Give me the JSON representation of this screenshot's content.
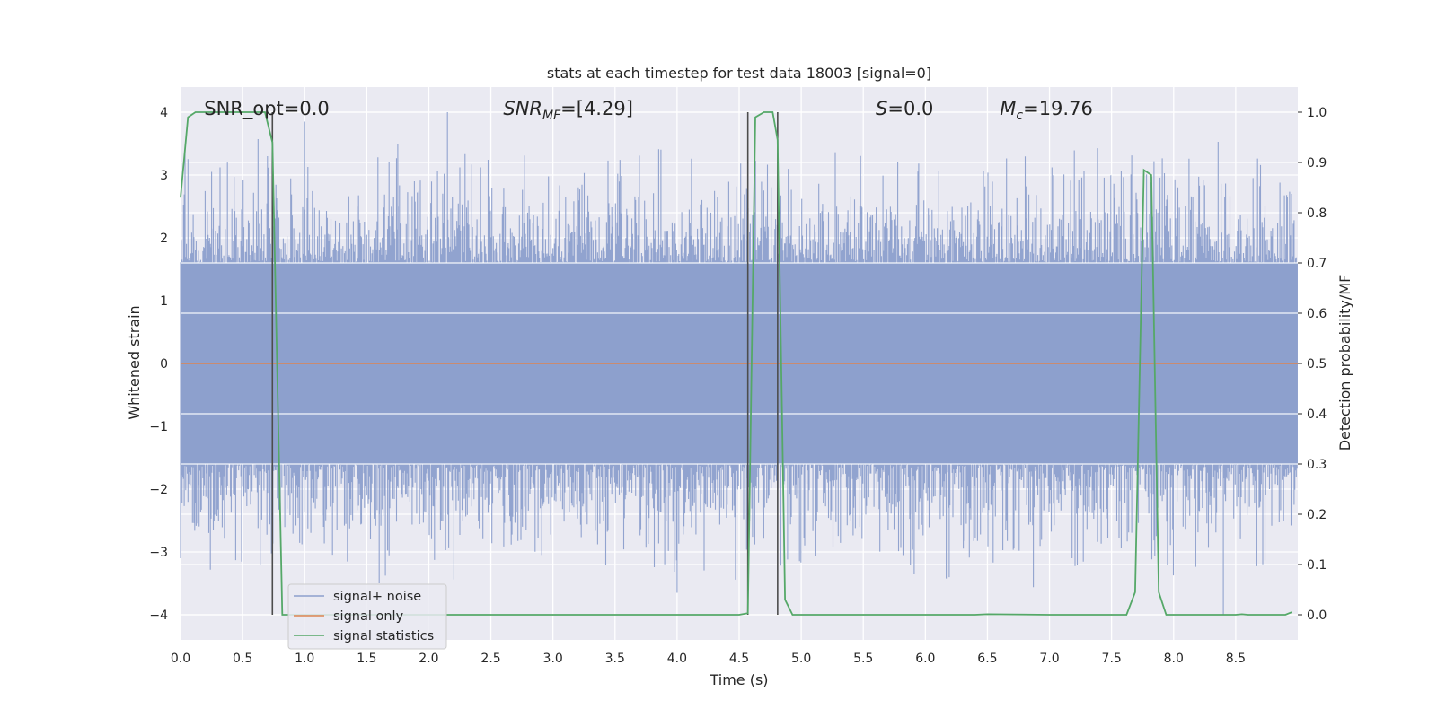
{
  "chart_data": {
    "type": "line",
    "title": "stats at each timestep for test data 18003 [signal=0]",
    "xlabel": "Time (s)",
    "ylabel_left": "Whitened strain",
    "ylabel_right": "Detection probability/MF",
    "xlim": [
      0.0,
      9.0
    ],
    "ylim_left": [
      -4.4,
      4.4
    ],
    "ylim_right": [
      -0.05,
      1.05
    ],
    "x_ticks": [
      0.0,
      0.5,
      1.0,
      1.5,
      2.0,
      2.5,
      3.0,
      3.5,
      4.0,
      4.5,
      5.0,
      5.5,
      6.0,
      6.5,
      7.0,
      7.5,
      8.0,
      8.5
    ],
    "x_tick_labels": [
      "0.0",
      "0.5",
      "1.0",
      "1.5",
      "2.0",
      "2.5",
      "3.0",
      "3.5",
      "4.0",
      "4.5",
      "5.0",
      "5.5",
      "6.0",
      "6.5",
      "7.0",
      "7.5",
      "8.0",
      "8.5"
    ],
    "y_left_ticks": [
      -4,
      -3,
      -2,
      -1,
      0,
      1,
      2,
      3,
      4
    ],
    "y_left_tick_labels": [
      "−4",
      "−3",
      "−2",
      "−1",
      "0",
      "1",
      "2",
      "3",
      "4"
    ],
    "y_right_ticks": [
      0.0,
      0.1,
      0.2,
      0.3,
      0.4,
      0.5,
      0.6,
      0.7,
      0.8,
      0.9,
      1.0
    ],
    "y_right_tick_labels": [
      "0.0",
      "0.1",
      "0.2",
      "0.3",
      "0.4",
      "0.5",
      "0.6",
      "0.7",
      "0.8",
      "0.9",
      "1.0"
    ],
    "grid": true,
    "legend_position": "lower-left",
    "annotations": [
      {
        "text": "SNR_opt=0.0",
        "x": 0.19,
        "y": 4.0
      },
      {
        "text": "SNR_MF=[4.29]",
        "x": 2.6,
        "y": 4.0
      },
      {
        "text": "S=0.0",
        "x": 5.6,
        "y": 4.0
      },
      {
        "text": "M_c=19.76",
        "x": 6.6,
        "y": 4.0
      }
    ],
    "vlines": [
      {
        "x": 0.74,
        "ymin": -4,
        "ymax": 4
      },
      {
        "x": 4.57,
        "ymin": -4,
        "ymax": 4
      },
      {
        "x": 4.81,
        "ymin": -4,
        "ymax": 4
      }
    ],
    "series": [
      {
        "name": "signal+ noise",
        "color": "#8c9fcc",
        "kind": "noise",
        "envelope": 1.6,
        "peak_max": 4.0,
        "peak_min": -4.0,
        "axis": "left"
      },
      {
        "name": "signal only",
        "color": "#dd8452",
        "x": [
          0.0,
          9.0
        ],
        "y": [
          0.0,
          0.0
        ],
        "axis": "left"
      },
      {
        "name": "signal statistics",
        "color": "#55a868",
        "axis": "right",
        "x": [
          0.0,
          0.06,
          0.12,
          0.2,
          0.3,
          0.5,
          0.68,
          0.74,
          0.82,
          1.0,
          1.5,
          2.0,
          2.5,
          3.0,
          3.5,
          4.0,
          4.5,
          4.57,
          4.63,
          4.7,
          4.77,
          4.81,
          4.87,
          4.93,
          5.0,
          5.5,
          6.0,
          6.4,
          6.5,
          7.0,
          7.5,
          7.62,
          7.69,
          7.76,
          7.82,
          7.88,
          7.94,
          8.0,
          8.5,
          8.55,
          8.6,
          8.9,
          8.95
        ],
        "y": [
          0.83,
          0.99,
          1.0,
          1.0,
          1.0,
          1.0,
          1.0,
          0.94,
          0.0,
          0.0,
          0.0,
          0.0,
          0.0,
          0.0,
          0.0,
          0.0,
          0.0,
          0.003,
          0.99,
          1.0,
          1.0,
          0.945,
          0.03,
          0.0,
          0.0,
          0.0,
          0.0,
          0.0,
          0.001,
          0.0,
          0.0,
          0.0,
          0.045,
          0.885,
          0.875,
          0.045,
          0.0,
          0.0,
          0.0,
          0.001,
          0.0,
          0.0,
          0.005
        ]
      }
    ]
  }
}
